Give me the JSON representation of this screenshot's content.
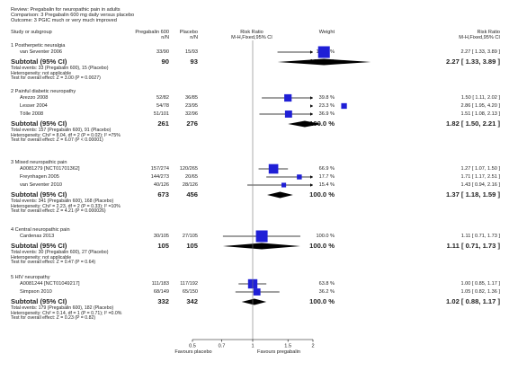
{
  "header": {
    "review": "Review:   Pregabalin for neuropathic pain in adults",
    "comparison": "Comparison:   3 Pregabalin 600 mg daily versus placebo",
    "outcome": "Outcome:   3 PGIC much or very much improved"
  },
  "columns": {
    "study": "Study or subgroup",
    "exp_name": "Pregabalin 600",
    "exp_nN": "n/N",
    "ctl_name": "Placebo",
    "ctl_nN": "n/N",
    "rr_name": "Risk Ratio",
    "rr_method": "M-H,Fixed,95% CI",
    "weight": "Weight",
    "rr2_name": "Risk Ratio",
    "rr2_method": "M-H,Fixed,95% CI"
  },
  "groups": [
    {
      "title": "1 Postherpetic neuralgia",
      "studies": [
        {
          "name": "van Seventer 2006",
          "exp": "33/90",
          "ctl": "15/93",
          "weight": "100.0 %",
          "rr_text": "2.27 [ 1.33, 3.89 ]",
          "rr": 2.27,
          "lo": 1.33,
          "hi": 3.89,
          "w": 100.0
        }
      ],
      "subtotal_label": "Subtotal (95% CI)",
      "sub_exp": "90",
      "sub_ctl": "93",
      "sub_weight": "100.0 %",
      "sub_rr_text": "2.27 [ 1.33, 3.89 ]",
      "sub_rr": 2.27,
      "sub_lo": 1.33,
      "sub_hi": 3.89,
      "total_events": "Total events: 33 (Pregabalin 600), 15 (Placebo)",
      "heterogeneity": "Heterogeneity: not applicable",
      "test": "Test for overall effect: Z = 3.00 (P = 0.0027)"
    },
    {
      "title": "2 Painful diabetic neuropathy",
      "studies": [
        {
          "name": "Arezzo 2008",
          "exp": "52/82",
          "ctl": "36/85",
          "weight": "39.8 %",
          "rr_text": "1.50 [ 1.11, 2.02 ]",
          "rr": 1.5,
          "lo": 1.11,
          "hi": 2.02,
          "w": 39.8
        },
        {
          "name": "Lesser 2004",
          "exp": "54/78",
          "ctl": "23/95",
          "weight": "23.3 %",
          "rr_text": "2.86 [ 1.95, 4.20 ]",
          "rr": 2.86,
          "lo": 1.95,
          "hi": 4.2,
          "w": 23.3
        },
        {
          "name": "Tölle 2008",
          "exp": "51/101",
          "ctl": "32/96",
          "weight": "36.9 %",
          "rr_text": "1.51 [ 1.08, 2.13 ]",
          "rr": 1.51,
          "lo": 1.08,
          "hi": 2.13,
          "w": 36.9
        }
      ],
      "subtotal_label": "Subtotal (95% CI)",
      "sub_exp": "261",
      "sub_ctl": "276",
      "sub_weight": "100.0 %",
      "sub_rr_text": "1.82 [ 1.50, 2.21 ]",
      "sub_rr": 1.82,
      "sub_lo": 1.5,
      "sub_hi": 2.21,
      "total_events": "Total events: 157 (Pregabalin 600), 91 (Placebo)",
      "heterogeneity": "Heterogeneity: Chi² = 8.04, df = 2 (P = 0.02); I² =75%",
      "test": "Test for overall effect: Z = 6.07 (P < 0.00001)"
    },
    {
      "title": "3 Mixed neuropathic pain",
      "studies": [
        {
          "name": "A0081279 [NCT01701362]",
          "exp": "157/274",
          "ctl": "120/265",
          "weight": "66.9 %",
          "rr_text": "1.27 [ 1.07, 1.50 ]",
          "rr": 1.27,
          "lo": 1.07,
          "hi": 1.5,
          "w": 66.9
        },
        {
          "name": "Freynhagen 2005",
          "exp": "144/273",
          "ctl": "20/65",
          "weight": "17.7 %",
          "rr_text": "1.71 [ 1.17, 2.51 ]",
          "rr": 1.71,
          "lo": 1.17,
          "hi": 2.51,
          "w": 17.7
        },
        {
          "name": "van Seventer 2010",
          "exp": "40/126",
          "ctl": "28/126",
          "weight": "15.4 %",
          "rr_text": "1.43 [ 0.94, 2.16 ]",
          "rr": 1.43,
          "lo": 0.94,
          "hi": 2.16,
          "w": 15.4
        }
      ],
      "subtotal_label": "Subtotal (95% CI)",
      "sub_exp": "673",
      "sub_ctl": "456",
      "sub_weight": "100.0 %",
      "sub_rr_text": "1.37 [ 1.18, 1.59 ]",
      "sub_rr": 1.37,
      "sub_lo": 1.18,
      "sub_hi": 1.59,
      "total_events": "Total events: 341 (Pregabalin 600), 168 (Placebo)",
      "heterogeneity": "Heterogeneity: Chi² = 2.23, df = 2 (P = 0.33); I² =10%",
      "test": "Test for overall effect: Z = 4.21 (P = 0.000026)"
    },
    {
      "title": "4 Central neuropathic pain",
      "studies": [
        {
          "name": "Cardenas 2013",
          "exp": "30/105",
          "ctl": "27/105",
          "weight": "100.0 %",
          "rr_text": "1.11 [ 0.71, 1.73 ]",
          "rr": 1.11,
          "lo": 0.71,
          "hi": 1.73,
          "w": 100.0
        }
      ],
      "subtotal_label": "Subtotal (95% CI)",
      "sub_exp": "105",
      "sub_ctl": "105",
      "sub_weight": "100.0 %",
      "sub_rr_text": "1.11 [ 0.71, 1.73 ]",
      "sub_rr": 1.11,
      "sub_lo": 0.71,
      "sub_hi": 1.73,
      "total_events": "Total events: 30 (Pregabalin 600), 27 (Placebo)",
      "heterogeneity": "Heterogeneity: not applicable",
      "test": "Test for overall effect: Z = 0.47 (P = 0.64)"
    },
    {
      "title": "5 HIV neuropathy",
      "studies": [
        {
          "name": "A0081244 [NCT01049217]",
          "exp": "111/183",
          "ctl": "117/192",
          "weight": "63.8 %",
          "rr_text": "1.00 [ 0.85, 1.17 ]",
          "rr": 1.0,
          "lo": 0.85,
          "hi": 1.17,
          "w": 63.8
        },
        {
          "name": "Simpson 2010",
          "exp": "68/149",
          "ctl": "65/150",
          "weight": "36.2 %",
          "rr_text": "1.05 [ 0.82, 1.36 ]",
          "rr": 1.05,
          "lo": 0.82,
          "hi": 1.36,
          "w": 36.2
        }
      ],
      "subtotal_label": "Subtotal (95% CI)",
      "sub_exp": "332",
      "sub_ctl": "342",
      "sub_weight": "100.0 %",
      "sub_rr_text": "1.02 [ 0.88, 1.17 ]",
      "sub_rr": 1.02,
      "sub_lo": 0.88,
      "sub_hi": 1.17,
      "total_events": "Total events: 179 (Pregabalin 600), 182 (Placebo)",
      "heterogeneity": "Heterogeneity: Chi² = 0.14, df = 1 (P = 0.71); I² =0.0%",
      "test": "Test for overall effect: Z = 0.23 (P = 0.82)"
    }
  ],
  "chart_data": {
    "type": "forest",
    "scale": "log",
    "xlim": [
      0.5,
      2
    ],
    "ticks": [
      0.5,
      0.7,
      1,
      1.5,
      2
    ],
    "tick_labels": [
      "0.5",
      "0.7",
      "1",
      "1.5",
      "2"
    ],
    "favours_left": "Favours placebo",
    "favours_right": "Favours pregabalin",
    "colors": {
      "study_marker": "#1f1fd6",
      "summary_diamond": "#000000",
      "ci_line": "#000000",
      "axis": "#000000",
      "null_line": "#777777"
    }
  }
}
